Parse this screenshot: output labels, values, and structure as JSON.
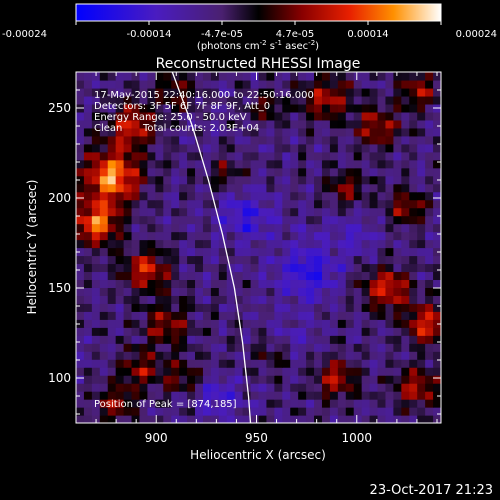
{
  "chart_data": {
    "type": "heatmap",
    "title": "Reconstructed RHESSI Image",
    "xlabel": "Heliocentric X (arcsec)",
    "ylabel": "Heliocentric Y (arcsec)",
    "xlim": [
      860,
      1042
    ],
    "ylim": [
      75,
      270
    ],
    "x_ticks": [
      900,
      950,
      1000
    ],
    "y_ticks": [
      100,
      150,
      200,
      250
    ],
    "colorbar": {
      "min": -0.00024,
      "max": 0.00024,
      "ticks": [
        "-0.00024",
        "-0.00014",
        "-4.7e-05",
        "4.7e-05",
        "0.00014",
        "0.00024"
      ],
      "unit_prefix": "(photons cm",
      "unit_exp1": "-2",
      "unit_mid": " s",
      "unit_exp2": "-1",
      "unit_mid2": " asec",
      "unit_exp3": "-2",
      "unit_suffix": ")"
    },
    "annotations": {
      "time_range": "17-May-2015 22:40:16.000 to 22:50:16.000",
      "detectors": "Detectors: 3F 5F 6F 7F 8F 9F, Att_0",
      "energy": "Energy Range: 25.0 - 50.0 keV",
      "clean_label": "Clean",
      "total_counts": "Total counts: 2.03E+04",
      "peak": "Position of Peak = [874,185]"
    },
    "limb_curve": [
      [
        908,
        270
      ],
      [
        918,
        240
      ],
      [
        926,
        210
      ],
      [
        933,
        180
      ],
      [
        939,
        150
      ],
      [
        943,
        120
      ],
      [
        946,
        90
      ],
      [
        947,
        75
      ]
    ],
    "sources": [
      {
        "x": 878,
        "y": 212,
        "amp": 0.00024,
        "r": 14
      },
      {
        "x": 870,
        "y": 186,
        "amp": 0.00021,
        "r": 12
      },
      {
        "x": 888,
        "y": 240,
        "amp": 0.00016,
        "r": 12
      },
      {
        "x": 895,
        "y": 160,
        "amp": 0.00015,
        "r": 12
      },
      {
        "x": 905,
        "y": 130,
        "amp": 0.00013,
        "r": 11
      },
      {
        "x": 892,
        "y": 105,
        "amp": 0.00012,
        "r": 11
      },
      {
        "x": 915,
        "y": 100,
        "amp": 0.0001,
        "r": 10
      },
      {
        "x": 880,
        "y": 85,
        "amp": 0.00011,
        "r": 10
      },
      {
        "x": 910,
        "y": 260,
        "amp": 0.0001,
        "r": 10
      },
      {
        "x": 985,
        "y": 255,
        "amp": 0.00014,
        "r": 12
      },
      {
        "x": 1010,
        "y": 240,
        "amp": 0.00013,
        "r": 11
      },
      {
        "x": 1030,
        "y": 260,
        "amp": 0.00012,
        "r": 10
      },
      {
        "x": 995,
        "y": 205,
        "amp": 0.00011,
        "r": 10
      },
      {
        "x": 1025,
        "y": 195,
        "amp": 0.00012,
        "r": 10
      },
      {
        "x": 1015,
        "y": 150,
        "amp": 0.00016,
        "r": 12
      },
      {
        "x": 1035,
        "y": 130,
        "amp": 0.00017,
        "r": 11
      },
      {
        "x": 1030,
        "y": 95,
        "amp": 0.00014,
        "r": 11
      },
      {
        "x": 990,
        "y": 100,
        "amp": 0.00013,
        "r": 11
      },
      {
        "x": 960,
        "y": 115,
        "amp": 0.00011,
        "r": 10
      },
      {
        "x": 955,
        "y": 250,
        "amp": 9e-05,
        "r": 9
      },
      {
        "x": 935,
        "y": 215,
        "amp": 8e-05,
        "r": 9
      },
      {
        "x": 945,
        "y": 190,
        "amp": -0.0001,
        "r": 14
      },
      {
        "x": 975,
        "y": 160,
        "amp": -0.00012,
        "r": 16
      },
      {
        "x": 965,
        "y": 120,
        "amp": -8e-05,
        "r": 12
      },
      {
        "x": 930,
        "y": 90,
        "amp": -9e-05,
        "r": 12
      },
      {
        "x": 1000,
        "y": 180,
        "amp": -7e-05,
        "r": 12
      }
    ]
  },
  "footer": {
    "date": "23-Oct-2017 21:23"
  }
}
